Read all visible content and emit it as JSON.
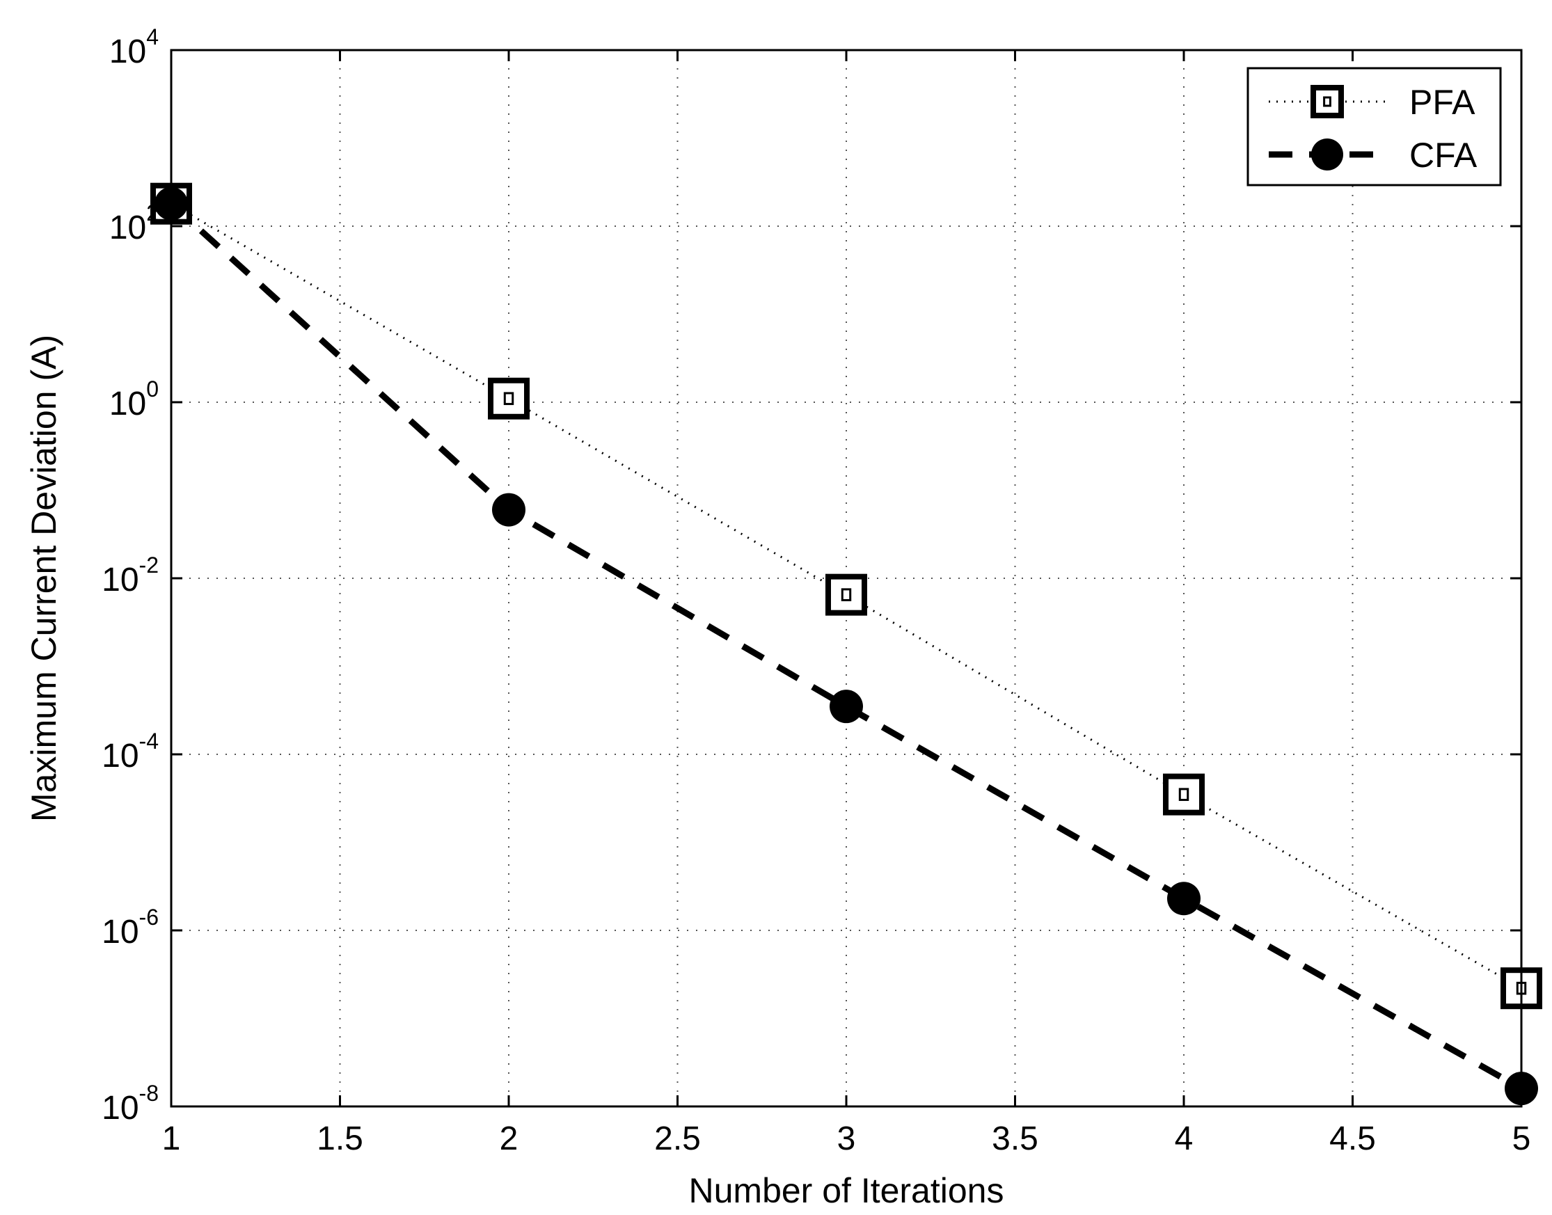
{
  "chart_data": {
    "type": "line",
    "title": "",
    "xlabel": "Number of Iterations",
    "ylabel": "Maximum Current Deviation (A)",
    "xlim": [
      1,
      5
    ],
    "ylim": [
      1e-08,
      10000.0
    ],
    "y_scale": "log",
    "grid": true,
    "legend_position": "top-right",
    "x_ticks": [
      "1",
      "1.5",
      "2",
      "2.5",
      "3",
      "3.5",
      "4",
      "4.5",
      "5"
    ],
    "y_ticks": [
      {
        "base": "10",
        "exp": "-8"
      },
      {
        "base": "10",
        "exp": "-6"
      },
      {
        "base": "10",
        "exp": "-4"
      },
      {
        "base": "10",
        "exp": "-2"
      },
      {
        "base": "10",
        "exp": "0"
      },
      {
        "base": "10",
        "exp": "2"
      },
      {
        "base": "10",
        "exp": "4"
      }
    ],
    "series": [
      {
        "name": "PFA",
        "line_style": "dotted",
        "marker": "square",
        "color": "#000000",
        "x": [
          1,
          2,
          3,
          4,
          5
        ],
        "y": [
          180,
          1.1,
          0.0065,
          3.5e-05,
          2.2e-07
        ]
      },
      {
        "name": "CFA",
        "line_style": "dashed",
        "marker": "circle",
        "color": "#000000",
        "x": [
          1,
          2,
          3,
          4,
          5
        ],
        "y": [
          180,
          0.06,
          0.00035,
          2.3e-06,
          1.6e-08
        ]
      }
    ]
  }
}
